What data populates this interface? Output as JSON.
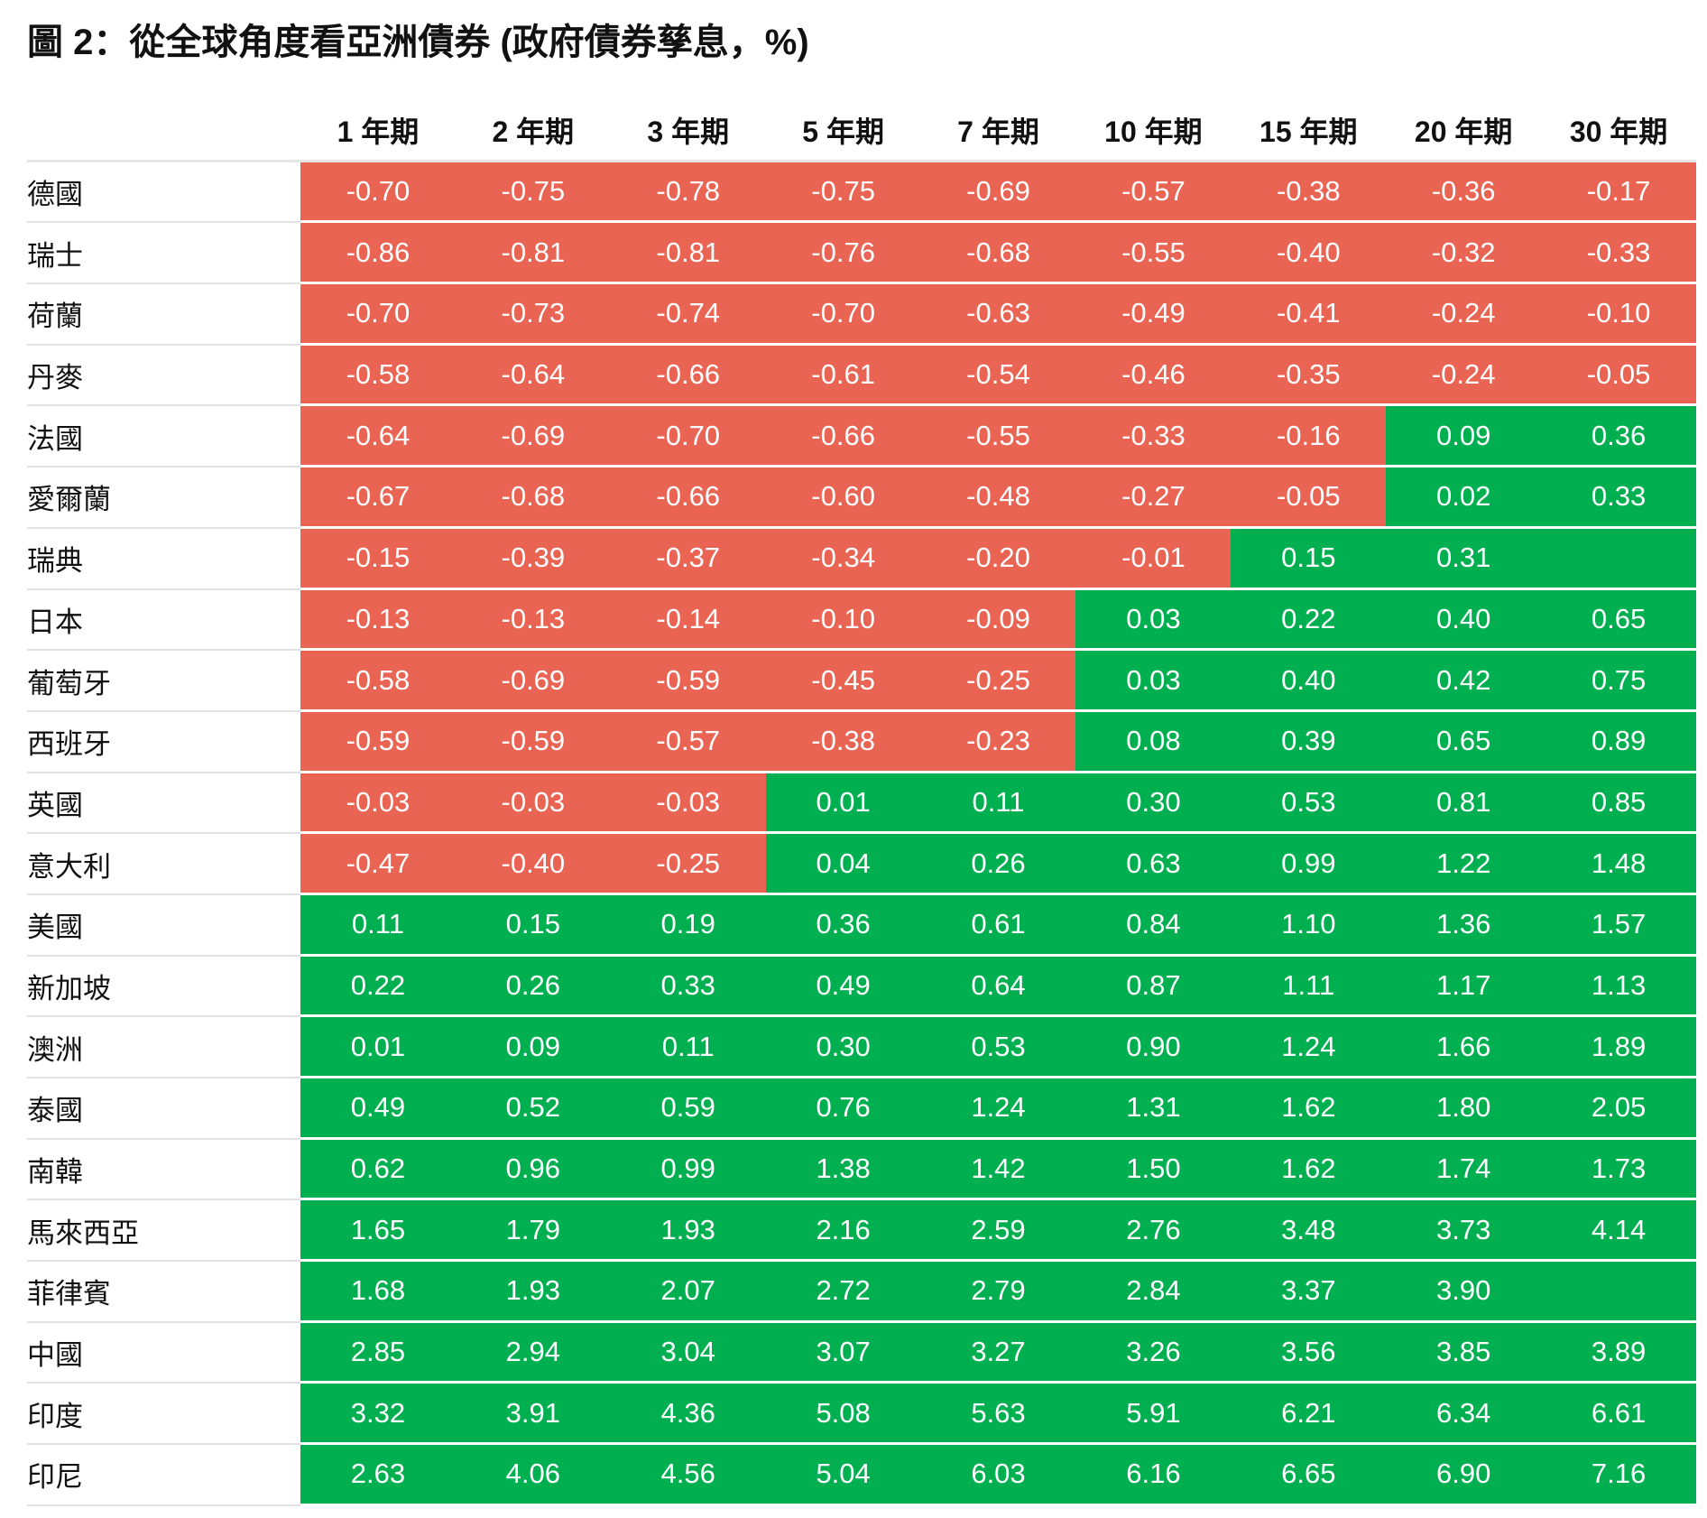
{
  "header": {
    "title": "圖 2：從全球角度看亞洲債券 (政府債券孳息，%)"
  },
  "table": {
    "columns": [
      "1 年期",
      "2 年期",
      "3 年期",
      "5 年期",
      "7 年期",
      "10 年期",
      "15 年期",
      "20 年期",
      "30 年期"
    ],
    "rows": [
      {
        "label": "德國",
        "values": [
          "-0.70",
          "-0.75",
          "-0.78",
          "-0.75",
          "-0.69",
          "-0.57",
          "-0.38",
          "-0.36",
          "-0.17"
        ]
      },
      {
        "label": "瑞士",
        "values": [
          "-0.86",
          "-0.81",
          "-0.81",
          "-0.76",
          "-0.68",
          "-0.55",
          "-0.40",
          "-0.32",
          "-0.33"
        ]
      },
      {
        "label": "荷蘭",
        "values": [
          "-0.70",
          "-0.73",
          "-0.74",
          "-0.70",
          "-0.63",
          "-0.49",
          "-0.41",
          "-0.24",
          "-0.10"
        ]
      },
      {
        "label": "丹麥",
        "values": [
          "-0.58",
          "-0.64",
          "-0.66",
          "-0.61",
          "-0.54",
          "-0.46",
          "-0.35",
          "-0.24",
          "-0.05"
        ]
      },
      {
        "label": "法國",
        "values": [
          "-0.64",
          "-0.69",
          "-0.70",
          "-0.66",
          "-0.55",
          "-0.33",
          "-0.16",
          "0.09",
          "0.36"
        ]
      },
      {
        "label": "愛爾蘭",
        "values": [
          "-0.67",
          "-0.68",
          "-0.66",
          "-0.60",
          "-0.48",
          "-0.27",
          "-0.05",
          "0.02",
          "0.33"
        ]
      },
      {
        "label": "瑞典",
        "values": [
          "-0.15",
          "-0.39",
          "-0.37",
          "-0.34",
          "-0.20",
          "-0.01",
          "0.15",
          "0.31",
          null
        ]
      },
      {
        "label": "日本",
        "values": [
          "-0.13",
          "-0.13",
          "-0.14",
          "-0.10",
          "-0.09",
          "0.03",
          "0.22",
          "0.40",
          "0.65"
        ]
      },
      {
        "label": "葡萄牙",
        "values": [
          "-0.58",
          "-0.69",
          "-0.59",
          "-0.45",
          "-0.25",
          "0.03",
          "0.40",
          "0.42",
          "0.75"
        ]
      },
      {
        "label": "西班牙",
        "values": [
          "-0.59",
          "-0.59",
          "-0.57",
          "-0.38",
          "-0.23",
          "0.08",
          "0.39",
          "0.65",
          "0.89"
        ]
      },
      {
        "label": "英國",
        "values": [
          "-0.03",
          "-0.03",
          "-0.03",
          "0.01",
          "0.11",
          "0.30",
          "0.53",
          "0.81",
          "0.85"
        ]
      },
      {
        "label": "意大利",
        "values": [
          "-0.47",
          "-0.40",
          "-0.25",
          "0.04",
          "0.26",
          "0.63",
          "0.99",
          "1.22",
          "1.48"
        ]
      },
      {
        "label": "美國",
        "values": [
          "0.11",
          "0.15",
          "0.19",
          "0.36",
          "0.61",
          "0.84",
          "1.10",
          "1.36",
          "1.57"
        ]
      },
      {
        "label": "新加坡",
        "values": [
          "0.22",
          "0.26",
          "0.33",
          "0.49",
          "0.64",
          "0.87",
          "1.11",
          "1.17",
          "1.13"
        ]
      },
      {
        "label": "澳洲",
        "values": [
          "0.01",
          "0.09",
          "0.11",
          "0.30",
          "0.53",
          "0.90",
          "1.24",
          "1.66",
          "1.89"
        ]
      },
      {
        "label": "泰國",
        "values": [
          "0.49",
          "0.52",
          "0.59",
          "0.76",
          "1.24",
          "1.31",
          "1.62",
          "1.80",
          "2.05"
        ]
      },
      {
        "label": "南韓",
        "values": [
          "0.62",
          "0.96",
          "0.99",
          "1.38",
          "1.42",
          "1.50",
          "1.62",
          "1.74",
          "1.73"
        ]
      },
      {
        "label": "馬來西亞",
        "values": [
          "1.65",
          "1.79",
          "1.93",
          "2.16",
          "2.59",
          "2.76",
          "3.48",
          "3.73",
          "4.14"
        ]
      },
      {
        "label": "菲律賓",
        "values": [
          "1.68",
          "1.93",
          "2.07",
          "2.72",
          "2.79",
          "2.84",
          "3.37",
          "3.90",
          null
        ]
      },
      {
        "label": "中國",
        "values": [
          "2.85",
          "2.94",
          "3.04",
          "3.07",
          "3.27",
          "3.26",
          "3.56",
          "3.85",
          "3.89"
        ]
      },
      {
        "label": "印度",
        "values": [
          "3.32",
          "3.91",
          "4.36",
          "5.08",
          "5.63",
          "5.91",
          "6.21",
          "6.34",
          "6.61"
        ]
      },
      {
        "label": "印尼",
        "values": [
          "2.63",
          "4.06",
          "4.56",
          "5.04",
          "6.03",
          "6.16",
          "6.65",
          "6.90",
          "7.16"
        ]
      }
    ]
  }
}
